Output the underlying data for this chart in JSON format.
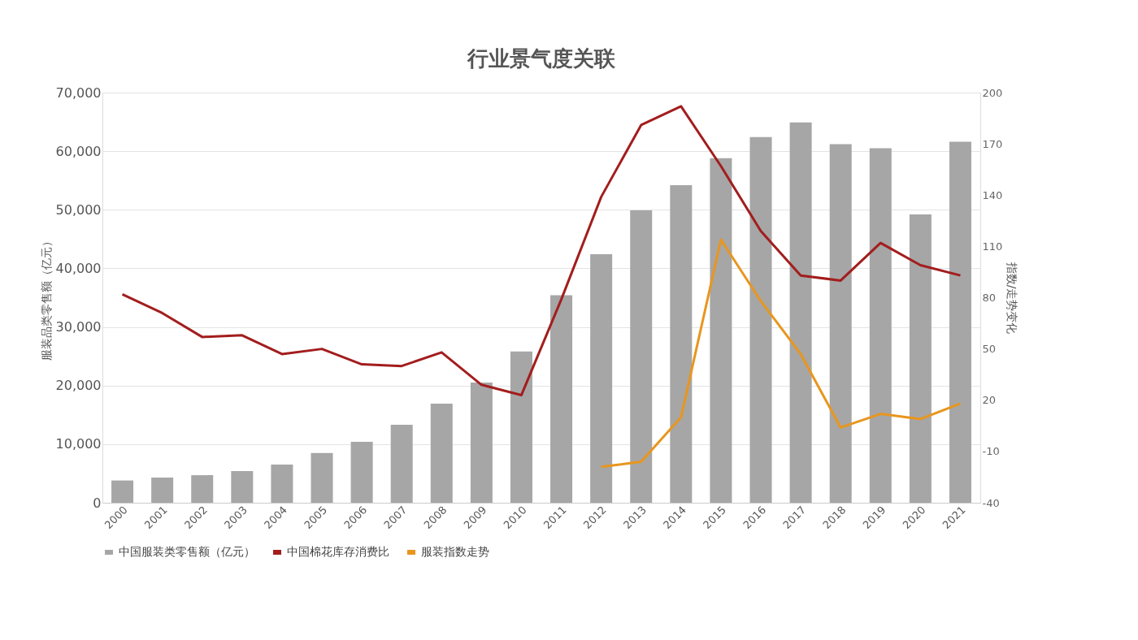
{
  "chart_data": {
    "type": "bar",
    "title": "行业景气度关联",
    "ylabel": "服装品类零售额（亿元）",
    "y2label": "指数/走势变化",
    "categories": [
      "2000",
      "2001",
      "2002",
      "2003",
      "2004",
      "2005",
      "2006",
      "2007",
      "2008",
      "2009",
      "2010",
      "2011",
      "2012",
      "2013",
      "2014",
      "2015",
      "2016",
      "2017",
      "2018",
      "2019",
      "2020",
      "2021"
    ],
    "series": [
      {
        "name": "中国服装类零售额（亿元）",
        "color": "#a6a6a6",
        "values": [
          3800,
          4300,
          4700,
          5400,
          6500,
          8500,
          10400,
          13300,
          16900,
          20500,
          25800,
          35400,
          42400,
          49900,
          54200,
          58800,
          62400,
          64900,
          61200,
          60500,
          49200,
          61600
        ]
      },
      {
        "name": "中国棉花库存消费比",
        "type": "line",
        "axis": "y2",
        "color": "#a31d1d",
        "values": [
          82,
          71,
          57,
          58,
          47,
          50,
          41,
          40,
          48,
          29,
          23,
          79,
          139,
          181,
          192,
          157,
          119,
          93,
          90,
          112,
          99,
          93
        ]
      },
      {
        "name": "服装指数走势",
        "type": "line",
        "axis": "y2",
        "color": "#e8961e",
        "values": [
          null,
          null,
          null,
          null,
          null,
          null,
          null,
          null,
          null,
          null,
          null,
          null,
          -19,
          -16,
          10,
          114,
          78,
          47,
          4,
          12,
          9,
          18
        ]
      }
    ],
    "ylim": [
      0,
      70000
    ],
    "yticks": [
      0,
      {
        "value": 10000,
        "label": "10,000"
      },
      {
        "value": 20000,
        "label": "20,000"
      },
      {
        "value": 30000,
        "label": "30,000"
      },
      {
        "value": 40000,
        "label": "40,000"
      },
      {
        "value": 50000,
        "label": "50,000"
      },
      {
        "value": 60000,
        "label": "60,000"
      },
      {
        "value": 70000,
        "label": "70,000"
      }
    ],
    "y2lim": [
      -40,
      200
    ],
    "y2ticks": [
      -40,
      -10,
      20,
      50,
      80,
      110,
      140,
      170,
      200
    ],
    "grid": "y",
    "legend": "bottom",
    "marker": "none",
    "line_style": "solid"
  }
}
